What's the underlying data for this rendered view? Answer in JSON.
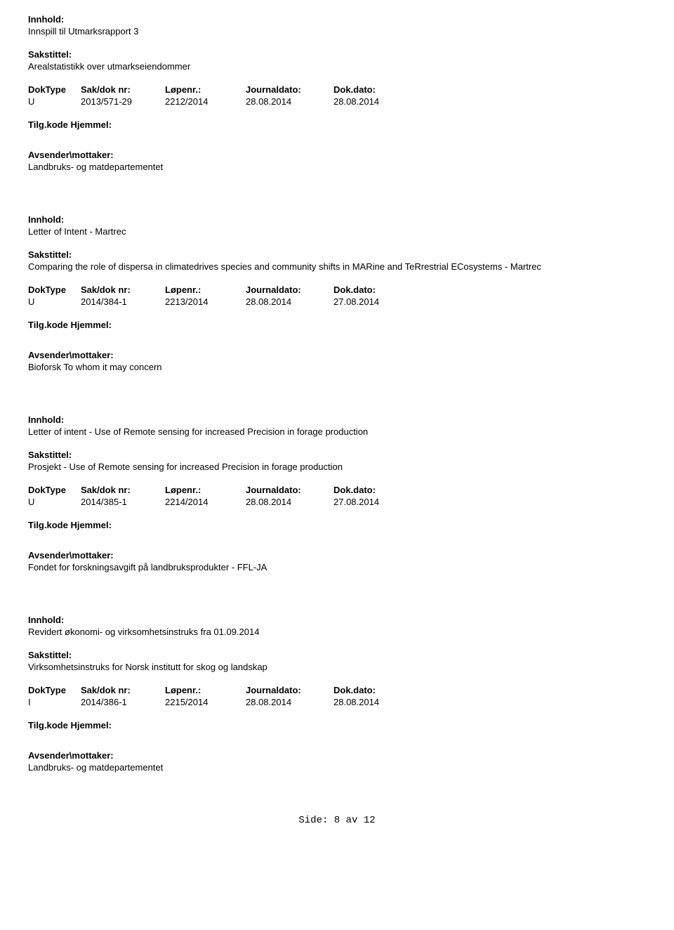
{
  "labels": {
    "innhold": "Innhold:",
    "sakstittel": "Sakstittel:",
    "doktype": "DokType",
    "sakdoknr": "Sak/dok nr:",
    "lopenr": "Løpenr.:",
    "journaldato": "Journaldato:",
    "dokdato": "Dok.dato:",
    "tilgkode": "Tilg.kode",
    "hjemmel": "Hjemmel:",
    "avsender": "Avsender\\mottaker:"
  },
  "entries": [
    {
      "innhold": "Innspill til Utmarksrapport 3",
      "sakstittel": "Arealstatistikk over utmarkseiendommer",
      "doktype": "U",
      "sakdoknr": "2013/571-29",
      "lopenr": "2212/2014",
      "journaldato": "28.08.2014",
      "dokdato": "28.08.2014",
      "avsender": "Landbruks- og matdepartementet"
    },
    {
      "innhold": "Letter of Intent  - Martrec",
      "sakstittel": "Comparing the role of dispersa in climatedrives species and community shifts in MARine and TeRrestrial ECosystems - Martrec",
      "doktype": "U",
      "sakdoknr": "2014/384-1",
      "lopenr": "2213/2014",
      "journaldato": "28.08.2014",
      "dokdato": "27.08.2014",
      "avsender": "Bioforsk To whom it may concern"
    },
    {
      "innhold": "Letter of intent - Use of Remote sensing for increased Precision in forage production",
      "sakstittel": "Prosjekt - Use of Remote sensing for increased Precision in forage production",
      "doktype": "U",
      "sakdoknr": "2014/385-1",
      "lopenr": "2214/2014",
      "journaldato": "28.08.2014",
      "dokdato": "27.08.2014",
      "avsender": "Fondet for forskningsavgift på landbruksprodukter - FFL-JA"
    },
    {
      "innhold": "Revidert økonomi- og virksomhetsinstruks fra 01.09.2014",
      "sakstittel": "Virksomhetsinstruks for Norsk institutt for skog og landskap",
      "doktype": "I",
      "sakdoknr": "2014/386-1",
      "lopenr": "2215/2014",
      "journaldato": "28.08.2014",
      "dokdato": "28.08.2014",
      "avsender": "Landbruks- og matdepartementet"
    }
  ],
  "footer": {
    "prefix": "Side:",
    "page": "8",
    "separator": "av",
    "total": "12"
  }
}
